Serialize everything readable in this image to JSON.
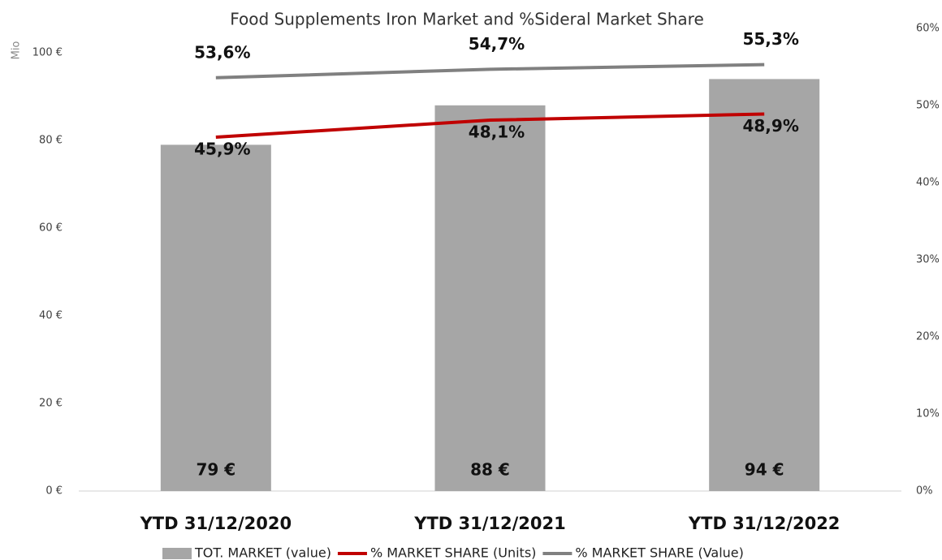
{
  "chart_data": {
    "type": "combo",
    "title": "Food Supplements Iron Market and %Sideral Market Share",
    "ylabel": "Mio",
    "categories": [
      "YTD 31/12/2020",
      "YTD 31/12/2021",
      "YTD 31/12/2022"
    ],
    "series": [
      {
        "name": "TOT. MARKET (value)",
        "type": "bar",
        "color": "#a6a6a6",
        "values": [
          79,
          88,
          94
        ],
        "value_labels": [
          "79 €",
          "88 €",
          "94 €"
        ]
      },
      {
        "name": "% MARKET SHARE (Units)",
        "type": "line",
        "axis": "y2",
        "color": "#c00000",
        "values": [
          45.9,
          48.1,
          48.9
        ],
        "value_labels": [
          "45,9%",
          "48,1%",
          "48,9%"
        ]
      },
      {
        "name": "% MARKET SHARE (Value)",
        "type": "line",
        "axis": "y2",
        "color": "#808080",
        "values": [
          53.6,
          54.7,
          55.3
        ],
        "value_labels": [
          "53,6%",
          "54,7%",
          "55,3%"
        ]
      }
    ],
    "ylim": [
      0,
      100
    ],
    "yticks": [
      {
        "value": 0,
        "label": "0 €"
      },
      {
        "value": 20,
        "label": "20 €"
      },
      {
        "value": 40,
        "label": "40 €"
      },
      {
        "value": 60,
        "label": "60 €"
      },
      {
        "value": 80,
        "label": "80 €"
      },
      {
        "value": 100,
        "label": "100 €"
      }
    ],
    "y2lim": [
      0,
      60
    ],
    "y2ticks": [
      {
        "value": 0,
        "label": "0%"
      },
      {
        "value": 10,
        "label": "10%"
      },
      {
        "value": 20,
        "label": "20%"
      },
      {
        "value": 30,
        "label": "30%"
      },
      {
        "value": 40,
        "label": "40%"
      },
      {
        "value": 50,
        "label": "50%"
      },
      {
        "value": 60,
        "label": "60%"
      }
    ],
    "legend": "bottom"
  }
}
